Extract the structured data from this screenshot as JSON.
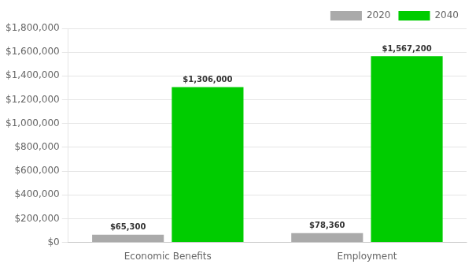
{
  "chart_data": {
    "type": "bar",
    "categories": [
      "Economic Benefits",
      "Employment"
    ],
    "series": [
      {
        "name": "2020",
        "color": "#aaaaaa",
        "values": [
          65300,
          78360
        ],
        "value_labels": [
          "$65,300",
          "$78,360"
        ]
      },
      {
        "name": "2040",
        "color": "#00cc00",
        "values": [
          1306000,
          1567200
        ],
        "value_labels": [
          "$1,306,000",
          "$1,567,200"
        ]
      }
    ],
    "ylim": [
      0,
      1800000
    ],
    "yticks": [
      {
        "value": 0,
        "label": "$0"
      },
      {
        "value": 200000,
        "label": "$200,000"
      },
      {
        "value": 400000,
        "label": "$400,000"
      },
      {
        "value": 600000,
        "label": "$600,000"
      },
      {
        "value": 800000,
        "label": "$800,000"
      },
      {
        "value": 1000000,
        "label": "$1,000,000"
      },
      {
        "value": 1200000,
        "label": "$1,200,000"
      },
      {
        "value": 1400000,
        "label": "$1,400,000"
      },
      {
        "value": 1600000,
        "label": "$1,600,000"
      },
      {
        "value": 1800000,
        "label": "$1,800,000"
      }
    ],
    "grid": "y",
    "legend": "upper right",
    "data_labels": true
  }
}
